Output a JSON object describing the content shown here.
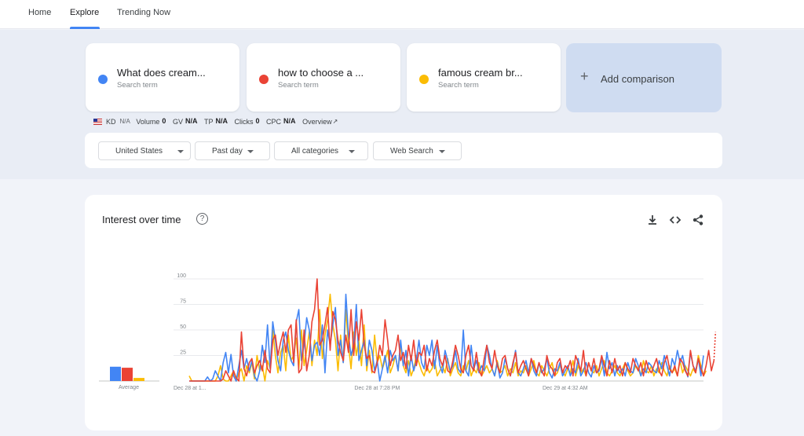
{
  "nav": {
    "items": [
      {
        "label": "Home",
        "active": false
      },
      {
        "label": "Explore",
        "active": true
      },
      {
        "label": "Trending Now",
        "active": false
      }
    ]
  },
  "terms": [
    {
      "title": "What does cream...",
      "subtitle": "Search term",
      "color": "#4285f4"
    },
    {
      "title": "how to choose a ...",
      "subtitle": "Search term",
      "color": "#ea4335"
    },
    {
      "title": "famous cream br...",
      "subtitle": "Search term",
      "color": "#fbbc04"
    }
  ],
  "add_comparison": {
    "label": "Add comparison",
    "icon": "plus-icon"
  },
  "metrics": {
    "flag": "us-flag-icon",
    "kd_label": "KD",
    "kd_value": "N/A",
    "volume_label": "Volume",
    "volume_value": "0",
    "gv_label": "GV",
    "gv_value": "N/A",
    "tp_label": "TP",
    "tp_value": "N/A",
    "clicks_label": "Clicks",
    "clicks_value": "0",
    "cpc_label": "CPC",
    "cpc_value": "N/A",
    "overview_label": "Overview",
    "overview_icon": "external-link-icon"
  },
  "filters": {
    "region": "United States",
    "time": "Past day",
    "category": "All categories",
    "search_type": "Web Search"
  },
  "chart_section": {
    "title": "Interest over time",
    "icons": [
      "help-icon",
      "download-icon",
      "embed-icon",
      "share-icon"
    ]
  },
  "chart_data": {
    "type": "line",
    "title": "",
    "xlabel": "",
    "ylabel": "",
    "ylim": [
      0,
      100
    ],
    "y_ticks": [
      25,
      50,
      75,
      100
    ],
    "grid": true,
    "x_tick_labels": [
      {
        "label": "Dec 28 at 1...",
        "index": 0
      },
      {
        "label": "Dec 28 at 7:28 PM",
        "index": 72
      },
      {
        "label": "Dec 29 at 4:32 AM",
        "index": 144
      }
    ],
    "average": {
      "label": "Average",
      "values": [
        14,
        13,
        3
      ]
    },
    "series": [
      {
        "color": "#4285f4",
        "values": [
          0,
          0,
          0,
          0,
          0,
          0,
          0,
          4,
          0,
          2,
          10,
          5,
          0,
          18,
          28,
          8,
          26,
          5,
          0,
          15,
          30,
          12,
          22,
          10,
          20,
          5,
          0,
          10,
          35,
          18,
          55,
          12,
          58,
          40,
          20,
          10,
          40,
          48,
          30,
          20,
          15,
          58,
          70,
          20,
          35,
          62,
          50,
          20,
          35,
          38,
          25,
          55,
          8,
          50,
          35,
          55,
          72,
          25,
          40,
          18,
          85,
          45,
          25,
          35,
          75,
          20,
          30,
          40,
          15,
          40,
          30,
          10,
          20,
          0,
          12,
          25,
          8,
          30,
          20,
          25,
          10,
          40,
          15,
          30,
          5,
          25,
          10,
          20,
          40,
          18,
          12,
          35,
          25,
          40,
          12,
          35,
          15,
          8,
          30,
          20,
          10,
          15,
          30,
          12,
          8,
          50,
          10,
          5,
          35,
          12,
          20,
          8,
          15,
          10,
          35,
          25,
          12,
          5,
          18,
          3,
          8,
          22,
          12,
          5,
          15,
          30,
          8,
          5,
          12,
          20,
          8,
          22,
          10,
          5,
          18,
          8,
          12,
          22,
          8,
          3,
          12,
          10,
          18,
          5,
          10,
          15,
          5,
          12,
          8,
          22,
          5,
          10,
          18,
          8,
          4,
          15,
          8,
          10,
          22,
          5,
          28,
          12,
          18,
          5,
          15,
          8,
          12,
          5,
          18,
          10,
          8,
          22,
          15,
          5,
          12,
          8,
          18,
          15,
          10,
          8,
          20,
          12,
          25,
          15,
          5,
          22,
          15,
          30,
          18,
          25,
          12,
          4,
          28,
          15,
          10,
          22,
          5,
          25
        ]
      },
      {
        "color": "#ea4335",
        "values": [
          0,
          0,
          0,
          0,
          0,
          0,
          0,
          0,
          0,
          0,
          0,
          0,
          0,
          2,
          10,
          5,
          0,
          10,
          3,
          0,
          48,
          12,
          5,
          18,
          22,
          8,
          15,
          20,
          10,
          30,
          12,
          8,
          40,
          45,
          25,
          38,
          48,
          28,
          50,
          55,
          18,
          60,
          8,
          12,
          50,
          10,
          25,
          58,
          70,
          100,
          35,
          40,
          55,
          72,
          30,
          68,
          60,
          40,
          28,
          20,
          45,
          28,
          70,
          25,
          58,
          40,
          70,
          35,
          22,
          25,
          10,
          8,
          18,
          35,
          25,
          60,
          40,
          15,
          25,
          30,
          45,
          20,
          28,
          12,
          35,
          20,
          40,
          15,
          28,
          25,
          35,
          10,
          22,
          15,
          30,
          40,
          22,
          15,
          25,
          10,
          8,
          20,
          35,
          25,
          12,
          8,
          25,
          35,
          15,
          10,
          28,
          10,
          5,
          22,
          35,
          18,
          12,
          30,
          15,
          8,
          22,
          25,
          12,
          5,
          18,
          28,
          8,
          15,
          20,
          12,
          5,
          22,
          15,
          8,
          18,
          10,
          5,
          25,
          15,
          12,
          5,
          18,
          22,
          8,
          15,
          12,
          20,
          5,
          25,
          18,
          10,
          30,
          5,
          18,
          10,
          22,
          8,
          12,
          25,
          15,
          5,
          20,
          8,
          22,
          10,
          15,
          5,
          18,
          12,
          8,
          22,
          15,
          10,
          18,
          5,
          20,
          12,
          8,
          15,
          22,
          10,
          5,
          18,
          25,
          12,
          8,
          15,
          5,
          22,
          18,
          10,
          5,
          30,
          15,
          8,
          22,
          12,
          5,
          15,
          30,
          10,
          20
        ]
      },
      {
        "color": "#fbbc04",
        "values": [
          5,
          0,
          0,
          0,
          0,
          0,
          0,
          0,
          0,
          0,
          0,
          5,
          15,
          2,
          0,
          0,
          5,
          10,
          0,
          8,
          12,
          0,
          15,
          8,
          18,
          2,
          25,
          10,
          15,
          0,
          20,
          12,
          50,
          25,
          8,
          28,
          35,
          10,
          45,
          20,
          25,
          42,
          12,
          50,
          15,
          30,
          48,
          15,
          40,
          25,
          70,
          22,
          45,
          60,
          85,
          55,
          40,
          10,
          45,
          18,
          70,
          35,
          12,
          48,
          25,
          40,
          15,
          55,
          10,
          30,
          8,
          45,
          18,
          25,
          12,
          20,
          30,
          8,
          15,
          25,
          10,
          35,
          15,
          8,
          20,
          5,
          12,
          25,
          18,
          10,
          5,
          15,
          8,
          12,
          20,
          5,
          10,
          15,
          8,
          22,
          5,
          12,
          18,
          8,
          5,
          15,
          10,
          20,
          5,
          12,
          8,
          18,
          5,
          10,
          15,
          8,
          12,
          5,
          20,
          8,
          10,
          15,
          5,
          12,
          8,
          18,
          5,
          10,
          8,
          15,
          5,
          12,
          20,
          8,
          5,
          15,
          10,
          5,
          12,
          18,
          5,
          8,
          15,
          10,
          5,
          12,
          8,
          20,
          5,
          15,
          8,
          12,
          5,
          18,
          10,
          8,
          15,
          5,
          12,
          20,
          8,
          5,
          10,
          15,
          8,
          5,
          12,
          18,
          10,
          5,
          8,
          15,
          12,
          5,
          20,
          10,
          8,
          15,
          5,
          12,
          8,
          18,
          10,
          5,
          15,
          8,
          12,
          5,
          20,
          8,
          15,
          10,
          5,
          12,
          8,
          25,
          15,
          5,
          10
        ]
      }
    ]
  }
}
